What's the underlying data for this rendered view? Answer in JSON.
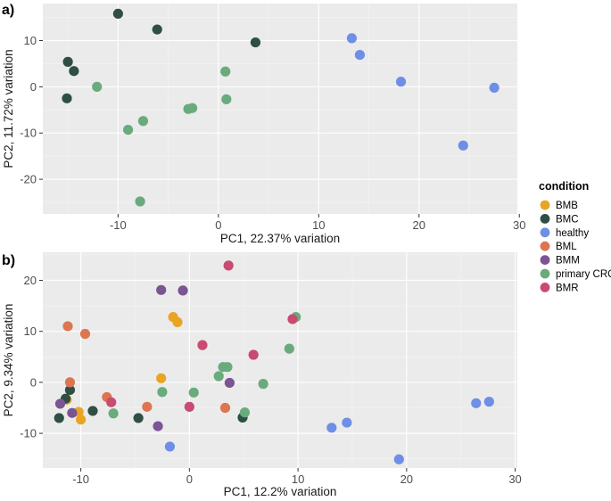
{
  "chart_data": [
    {
      "type": "scatter",
      "panel_tag": "a)",
      "xlabel": "PC1, 22.37% variation",
      "ylabel": "PC2, 11.72% variation",
      "xticks": [
        -10,
        0,
        10,
        20,
        30
      ],
      "yticks": [
        -20,
        -10,
        0,
        10
      ],
      "xlim": [
        -17.5,
        29.8
      ],
      "ylim": [
        -27.5,
        18
      ],
      "grid": true,
      "series": [
        {
          "name": "BMC",
          "color": "#2f4f44",
          "points": [
            [
              -15.0,
              5.4
            ],
            [
              -14.4,
              3.4
            ],
            [
              -15.1,
              -2.5
            ],
            [
              -10.0,
              15.8
            ],
            [
              -6.1,
              12.4
            ],
            [
              3.7,
              9.6
            ]
          ]
        },
        {
          "name": "healthy",
          "color": "#6f8fe6",
          "points": [
            [
              13.3,
              10.5
            ],
            [
              14.1,
              6.9
            ],
            [
              18.2,
              1.1
            ],
            [
              27.5,
              -0.2
            ],
            [
              24.4,
              -12.7
            ]
          ]
        },
        {
          "name": "primary CRC",
          "color": "#6aab7e",
          "points": [
            [
              -12.1,
              0.0
            ],
            [
              0.7,
              3.3
            ],
            [
              0.8,
              -2.7
            ],
            [
              -2.6,
              -4.6
            ],
            [
              -3.0,
              -4.8
            ],
            [
              -7.5,
              -7.4
            ],
            [
              -9.0,
              -9.3
            ],
            [
              -7.8,
              -24.8
            ]
          ]
        }
      ]
    },
    {
      "type": "scatter",
      "panel_tag": "b)",
      "xlabel": "PC1, 12.2% variation",
      "ylabel": "PC2, 9.34% variation",
      "xticks": [
        -10,
        0,
        10,
        20,
        30
      ],
      "yticks": [
        -10,
        0,
        10,
        20
      ],
      "xlim": [
        -13.5,
        30.2
      ],
      "ylim": [
        -16.8,
        25.5
      ],
      "grid": true,
      "series": [
        {
          "name": "BMB",
          "color": "#e8a523",
          "points": [
            [
              -1.5,
              12.8
            ],
            [
              -1.1,
              11.8
            ],
            [
              -2.6,
              0.8
            ],
            [
              -11.3,
              -3.4
            ],
            [
              -10.2,
              -5.8
            ],
            [
              -10.0,
              -7.3
            ]
          ]
        },
        {
          "name": "BMC",
          "color": "#2f4f44",
          "points": [
            [
              -11.0,
              -1.5
            ],
            [
              -11.4,
              -3.2
            ],
            [
              -12.0,
              -7.0
            ],
            [
              -8.9,
              -5.6
            ],
            [
              -4.7,
              -7.0
            ],
            [
              4.9,
              -6.9
            ]
          ]
        },
        {
          "name": "healthy",
          "color": "#6f8fe6",
          "points": [
            [
              -1.8,
              -12.6
            ],
            [
              13.1,
              -8.9
            ],
            [
              14.5,
              -7.9
            ],
            [
              19.3,
              -15.1
            ],
            [
              26.4,
              -4.1
            ],
            [
              27.6,
              -3.8
            ]
          ]
        },
        {
          "name": "BML",
          "color": "#dc7650",
          "points": [
            [
              -11.2,
              11.0
            ],
            [
              -9.6,
              9.5
            ],
            [
              -11.0,
              0.0
            ],
            [
              -7.6,
              -2.9
            ],
            [
              -3.9,
              -4.8
            ],
            [
              3.3,
              -5.0
            ]
          ]
        },
        {
          "name": "BMM",
          "color": "#7a5493",
          "points": [
            [
              -2.6,
              18.1
            ],
            [
              -0.6,
              18.0
            ],
            [
              -11.9,
              -4.2
            ],
            [
              -10.8,
              -6.0
            ],
            [
              -2.9,
              -8.6
            ],
            [
              3.7,
              -0.1
            ]
          ]
        },
        {
          "name": "primary CRC",
          "color": "#6aab7e",
          "points": [
            [
              -7.0,
              -6.1
            ],
            [
              -2.5,
              -1.9
            ],
            [
              0.4,
              -2.0
            ],
            [
              3.1,
              3.0
            ],
            [
              3.5,
              3.0
            ],
            [
              2.7,
              1.2
            ],
            [
              6.8,
              -0.3
            ],
            [
              5.1,
              -5.9
            ],
            [
              9.2,
              6.6
            ],
            [
              9.8,
              12.8
            ]
          ]
        },
        {
          "name": "BMR",
          "color": "#c94b72",
          "points": [
            [
              3.6,
              22.9
            ],
            [
              1.2,
              7.3
            ],
            [
              9.5,
              12.4
            ],
            [
              5.9,
              5.4
            ],
            [
              0.0,
              -4.8
            ],
            [
              -7.2,
              -3.9
            ]
          ]
        }
      ]
    }
  ],
  "legend": {
    "title": "condition",
    "items": [
      {
        "label": "BMB",
        "color": "#e8a523"
      },
      {
        "label": "BMC",
        "color": "#2f4f44"
      },
      {
        "label": "healthy",
        "color": "#6f8fe6"
      },
      {
        "label": "BML",
        "color": "#dc7650"
      },
      {
        "label": "BMM",
        "color": "#7a5493"
      },
      {
        "label": "primary CRC",
        "color": "#6aab7e"
      },
      {
        "label": "BMR",
        "color": "#c94b72"
      }
    ]
  }
}
